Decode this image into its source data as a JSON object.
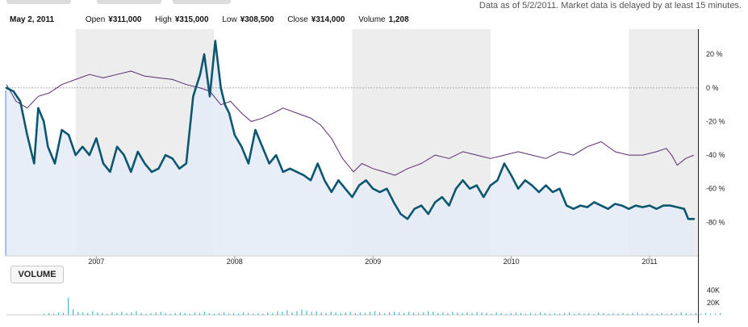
{
  "header": {
    "as_of": "Data as of 5/2/2011. Market data is delayed by at least 15 minutes."
  },
  "quote": {
    "date": "May 2, 2011",
    "open_label": "Open",
    "open": "¥311,000",
    "high_label": "High",
    "high": "¥315,000",
    "low_label": "Low",
    "low": "¥308,500",
    "close_label": "Close",
    "close": "¥314,000",
    "volume_label": "Volume",
    "volume": "1,208"
  },
  "volume_button": "VOLUME",
  "colors": {
    "stock": "#0d5670",
    "index": "#5a2a72",
    "area": "#e3ebf7",
    "band": "#ededed",
    "volume": "#45b8d2"
  },
  "chart_data": {
    "type": "line",
    "x_ticks": [
      "2007",
      "2008",
      "2009",
      "2010",
      "2011"
    ],
    "y_ticks": [
      "20 %",
      "0 %",
      "-20 %",
      "-40 %",
      "-60 %",
      "-80 %"
    ],
    "y_tick_values": [
      20,
      0,
      -20,
      -40,
      -60,
      -80
    ],
    "ylim": [
      -100,
      35
    ],
    "xlim": [
      2006.35,
      2011.35
    ],
    "tick_positions": [
      2007.0,
      2008.0,
      2009.0,
      2010.0,
      2011.0
    ],
    "shaded_year_bands": [
      [
        2006.85,
        2007.85
      ],
      [
        2008.85,
        2009.85
      ],
      [
        2010.85,
        2011.35
      ]
    ],
    "series": [
      {
        "role": "stock",
        "style": "thick",
        "x": [
          2006.35,
          2006.4,
          2006.45,
          2006.5,
          2006.55,
          2006.58,
          2006.62,
          2006.65,
          2006.7,
          2006.75,
          2006.8,
          2006.85,
          2006.9,
          2006.95,
          2007.0,
          2007.05,
          2007.1,
          2007.15,
          2007.2,
          2007.25,
          2007.3,
          2007.35,
          2007.4,
          2007.45,
          2007.5,
          2007.55,
          2007.6,
          2007.65,
          2007.7,
          2007.75,
          2007.78,
          2007.82,
          2007.86,
          2007.9,
          2007.93,
          2007.96,
          2008.0,
          2008.05,
          2008.1,
          2008.15,
          2008.2,
          2008.25,
          2008.3,
          2008.35,
          2008.4,
          2008.45,
          2008.5,
          2008.55,
          2008.6,
          2008.65,
          2008.7,
          2008.75,
          2008.8,
          2008.85,
          2008.9,
          2008.95,
          2009.0,
          2009.05,
          2009.1,
          2009.15,
          2009.2,
          2009.25,
          2009.3,
          2009.35,
          2009.4,
          2009.45,
          2009.5,
          2009.55,
          2009.6,
          2009.65,
          2009.7,
          2009.75,
          2009.8,
          2009.85,
          2009.9,
          2009.95,
          2010.0,
          2010.05,
          2010.1,
          2010.15,
          2010.2,
          2010.25,
          2010.3,
          2010.35,
          2010.4,
          2010.45,
          2010.5,
          2010.55,
          2010.6,
          2010.65,
          2010.7,
          2010.75,
          2010.8,
          2010.85,
          2010.9,
          2010.95,
          2011.0,
          2011.05,
          2011.1,
          2011.15,
          2011.2,
          2011.25,
          2011.28,
          2011.32
        ],
        "values": [
          0,
          -2,
          -8,
          -28,
          -45,
          -12,
          -20,
          -35,
          -45,
          -25,
          -28,
          -40,
          -35,
          -40,
          -30,
          -45,
          -50,
          -35,
          -40,
          -50,
          -38,
          -45,
          -50,
          -48,
          -40,
          -42,
          -48,
          -45,
          -5,
          8,
          20,
          -5,
          28,
          0,
          -10,
          -15,
          -28,
          -35,
          -45,
          -25,
          -35,
          -45,
          -40,
          -50,
          -48,
          -50,
          -52,
          -55,
          -45,
          -55,
          -62,
          -55,
          -60,
          -65,
          -58,
          -55,
          -60,
          -62,
          -60,
          -68,
          -75,
          -78,
          -72,
          -70,
          -75,
          -68,
          -65,
          -70,
          -60,
          -55,
          -60,
          -58,
          -65,
          -58,
          -55,
          -45,
          -52,
          -60,
          -55,
          -58,
          -62,
          -58,
          -62,
          -60,
          -70,
          -72,
          -70,
          -71,
          -68,
          -70,
          -72,
          -69,
          -70,
          -72,
          -70,
          -71,
          -70,
          -72,
          -70,
          -70,
          -71,
          -72,
          -78,
          -78
        ]
      },
      {
        "role": "index",
        "style": "thin",
        "x": [
          2006.35,
          2006.42,
          2006.5,
          2006.58,
          2006.66,
          2006.75,
          2006.85,
          2006.95,
          2007.05,
          2007.15,
          2007.25,
          2007.35,
          2007.45,
          2007.55,
          2007.65,
          2007.75,
          2007.82,
          2007.9,
          2007.97,
          2008.05,
          2008.12,
          2008.2,
          2008.28,
          2008.35,
          2008.45,
          2008.55,
          2008.62,
          2008.7,
          2008.78,
          2008.86,
          2008.92,
          2009.0,
          2009.08,
          2009.16,
          2009.25,
          2009.35,
          2009.45,
          2009.55,
          2009.65,
          2009.75,
          2009.85,
          2009.95,
          2010.05,
          2010.15,
          2010.25,
          2010.35,
          2010.45,
          2010.55,
          2010.65,
          2010.75,
          2010.85,
          2010.95,
          2011.05,
          2011.12,
          2011.16,
          2011.2,
          2011.26,
          2011.32
        ],
        "values": [
          2,
          -8,
          -12,
          -5,
          -3,
          2,
          5,
          8,
          6,
          8,
          10,
          7,
          6,
          5,
          2,
          0,
          -2,
          -10,
          -8,
          -15,
          -20,
          -18,
          -15,
          -12,
          -15,
          -18,
          -22,
          -30,
          -42,
          -50,
          -45,
          -48,
          -50,
          -52,
          -48,
          -45,
          -40,
          -42,
          -38,
          -40,
          -42,
          -40,
          -38,
          -40,
          -42,
          -38,
          -40,
          -35,
          -32,
          -38,
          -40,
          -40,
          -38,
          -36,
          -40,
          -46,
          -42,
          -40
        ]
      }
    ],
    "volume": {
      "ylim": [
        0,
        50
      ],
      "y_ticks": [
        "40K",
        "20K"
      ],
      "y_tick_values": [
        40,
        20
      ],
      "bars": [
        2,
        3,
        2,
        4,
        3,
        28,
        9,
        5,
        4,
        3,
        6,
        4,
        3,
        2,
        4,
        3,
        5,
        3,
        4,
        6,
        3,
        2,
        3,
        4,
        5,
        3,
        2,
        3,
        4,
        3,
        2,
        4,
        3,
        5,
        3,
        2,
        3,
        4,
        2,
        3,
        2,
        4,
        3,
        2,
        3,
        2,
        4,
        3,
        6,
        5,
        8,
        4,
        6,
        9,
        7,
        5,
        6,
        4,
        3,
        5,
        4,
        3,
        4,
        5,
        3,
        4,
        3,
        5,
        6,
        4,
        3,
        4,
        5,
        4,
        3,
        5,
        4,
        3,
        4,
        6,
        5,
        3,
        4,
        3,
        5,
        4,
        3,
        4,
        3,
        5,
        4,
        3,
        2,
        4,
        3,
        2,
        3,
        4,
        3,
        2,
        3,
        2,
        4,
        3,
        2,
        3,
        2,
        3,
        4,
        2,
        3,
        2,
        3,
        2,
        4,
        3,
        2,
        3,
        2,
        3,
        2,
        3,
        4,
        2,
        3,
        2,
        2,
        3,
        2,
        3,
        2,
        4,
        3,
        2,
        3,
        2,
        3,
        2,
        2,
        3
      ]
    }
  }
}
